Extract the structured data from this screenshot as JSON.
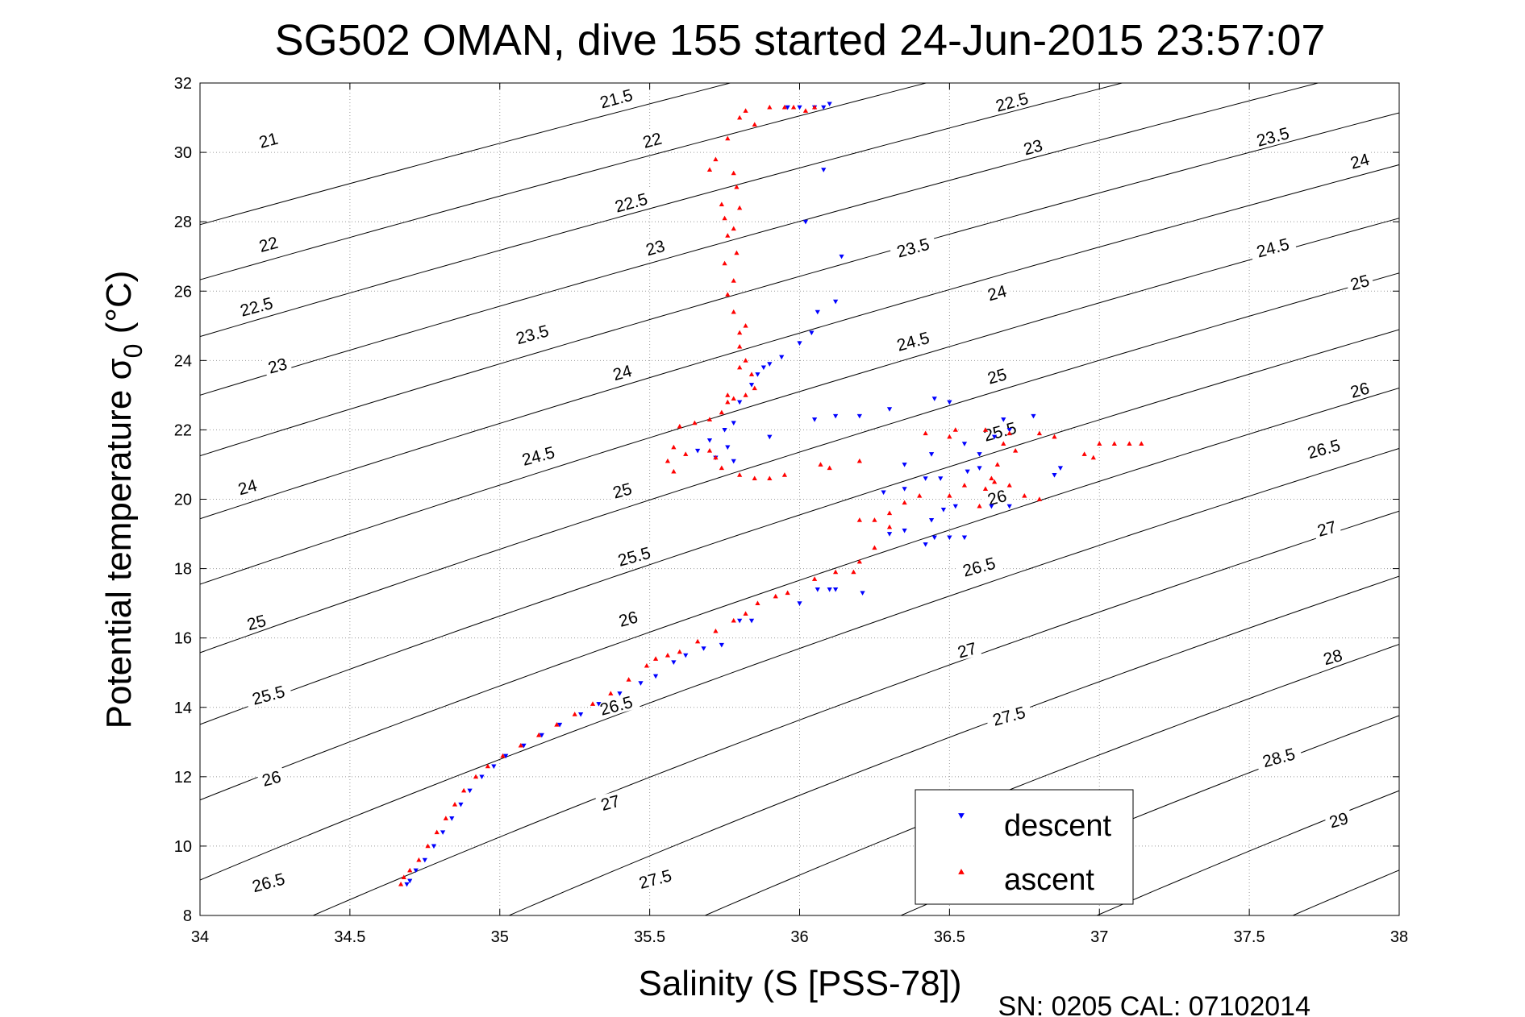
{
  "chart_data": {
    "type": "scatter",
    "title": "SG502 OMAN, dive 155 started 24-Jun-2015 23:57:07",
    "xlabel": "Salinity (S [PSS-78])",
    "ylabel_main": "Potential temperature σ",
    "ylabel_sub": "0",
    "ylabel_unit": " (°C)",
    "footer": "SN: 0205  CAL: 07102014",
    "xlim": [
      34,
      38
    ],
    "ylim": [
      8,
      32
    ],
    "xticks": [
      "34",
      "34.5",
      "35",
      "35.5",
      "36",
      "36.5",
      "37",
      "37.5",
      "38"
    ],
    "yticks": [
      "8",
      "10",
      "12",
      "14",
      "16",
      "18",
      "20",
      "22",
      "24",
      "26",
      "28",
      "30",
      "32"
    ],
    "grid": true,
    "legend_position": "bottom-right",
    "contour_labels": [
      {
        "text": "21",
        "x": 34.23,
        "y": 30.3
      },
      {
        "text": "21.5",
        "x": 35.39,
        "y": 31.5
      },
      {
        "text": "22.5",
        "x": 36.71,
        "y": 31.4
      },
      {
        "text": "22",
        "x": 34.23,
        "y": 27.3
      },
      {
        "text": "22",
        "x": 35.51,
        "y": 30.3
      },
      {
        "text": "23",
        "x": 36.78,
        "y": 30.1
      },
      {
        "text": "23.5",
        "x": 37.58,
        "y": 30.4
      },
      {
        "text": "24",
        "x": 37.87,
        "y": 29.7
      },
      {
        "text": "22.5",
        "x": 34.19,
        "y": 25.5
      },
      {
        "text": "22.5",
        "x": 35.44,
        "y": 28.5
      },
      {
        "text": "23.5",
        "x": 36.38,
        "y": 27.2
      },
      {
        "text": "24.5",
        "x": 37.58,
        "y": 27.2
      },
      {
        "text": "25",
        "x": 37.87,
        "y": 26.2
      },
      {
        "text": "23",
        "x": 34.26,
        "y": 23.8
      },
      {
        "text": "23",
        "x": 35.52,
        "y": 27.2
      },
      {
        "text": "24",
        "x": 36.66,
        "y": 25.9
      },
      {
        "text": "23.5",
        "x": 35.11,
        "y": 24.7
      },
      {
        "text": "24",
        "x": 35.41,
        "y": 23.6
      },
      {
        "text": "24.5",
        "x": 36.38,
        "y": 24.5
      },
      {
        "text": "25",
        "x": 36.66,
        "y": 23.5
      },
      {
        "text": "26",
        "x": 37.87,
        "y": 23.1
      },
      {
        "text": "24",
        "x": 34.16,
        "y": 20.3
      },
      {
        "text": "24.5",
        "x": 35.13,
        "y": 21.2
      },
      {
        "text": "25",
        "x": 35.41,
        "y": 20.2
      },
      {
        "text": "25.5",
        "x": 36.67,
        "y": 21.9
      },
      {
        "text": "26.5",
        "x": 37.75,
        "y": 21.4
      },
      {
        "text": "26",
        "x": 36.66,
        "y": 20.0
      },
      {
        "text": "27",
        "x": 37.76,
        "y": 19.1
      },
      {
        "text": "25.5",
        "x": 35.45,
        "y": 18.3
      },
      {
        "text": "26.5",
        "x": 36.6,
        "y": 18.0
      },
      {
        "text": "25",
        "x": 34.19,
        "y": 16.4
      },
      {
        "text": "26",
        "x": 35.43,
        "y": 16.5
      },
      {
        "text": "27",
        "x": 36.56,
        "y": 15.6
      },
      {
        "text": "28",
        "x": 37.78,
        "y": 15.4
      },
      {
        "text": "25.5",
        "x": 34.23,
        "y": 14.3
      },
      {
        "text": "26.5",
        "x": 35.39,
        "y": 14.0
      },
      {
        "text": "27.5",
        "x": 36.7,
        "y": 13.7
      },
      {
        "text": "28.5",
        "x": 37.6,
        "y": 12.5
      },
      {
        "text": "26",
        "x": 34.24,
        "y": 11.9
      },
      {
        "text": "27",
        "x": 35.37,
        "y": 11.2
      },
      {
        "text": "29",
        "x": 37.8,
        "y": 10.7
      },
      {
        "text": "26.5",
        "x": 34.23,
        "y": 8.9
      },
      {
        "text": "27.5",
        "x": 35.52,
        "y": 9.0
      }
    ],
    "series": [
      {
        "name": "descent",
        "color": "#0000ff",
        "marker": "triangle-down",
        "points": [
          [
            34.69,
            8.9
          ],
          [
            34.7,
            9.0
          ],
          [
            34.72,
            9.3
          ],
          [
            34.75,
            9.6
          ],
          [
            34.78,
            10.0
          ],
          [
            34.81,
            10.4
          ],
          [
            34.84,
            10.8
          ],
          [
            34.87,
            11.2
          ],
          [
            34.9,
            11.6
          ],
          [
            34.94,
            12.0
          ],
          [
            34.98,
            12.3
          ],
          [
            35.02,
            12.6
          ],
          [
            35.08,
            12.9
          ],
          [
            35.14,
            13.2
          ],
          [
            35.2,
            13.5
          ],
          [
            35.27,
            13.8
          ],
          [
            35.33,
            14.1
          ],
          [
            35.4,
            14.4
          ],
          [
            35.47,
            14.7
          ],
          [
            35.52,
            14.9
          ],
          [
            35.58,
            15.3
          ],
          [
            35.62,
            15.5
          ],
          [
            35.68,
            15.7
          ],
          [
            35.74,
            15.8
          ],
          [
            35.8,
            16.5
          ],
          [
            35.84,
            16.5
          ],
          [
            36.0,
            17.0
          ],
          [
            36.06,
            17.4
          ],
          [
            36.1,
            17.4
          ],
          [
            36.12,
            17.4
          ],
          [
            36.21,
            17.3
          ],
          [
            36.3,
            19.0
          ],
          [
            36.35,
            19.1
          ],
          [
            36.42,
            18.7
          ],
          [
            36.45,
            18.9
          ],
          [
            36.5,
            18.9
          ],
          [
            36.55,
            18.9
          ],
          [
            36.44,
            19.4
          ],
          [
            36.48,
            19.7
          ],
          [
            36.52,
            19.8
          ],
          [
            36.28,
            20.2
          ],
          [
            36.35,
            20.3
          ],
          [
            36.42,
            20.6
          ],
          [
            36.47,
            20.6
          ],
          [
            36.35,
            21.0
          ],
          [
            36.44,
            21.3
          ],
          [
            36.55,
            21.6
          ],
          [
            36.6,
            21.3
          ],
          [
            36.65,
            21.8
          ],
          [
            36.7,
            22.0
          ],
          [
            36.78,
            22.4
          ],
          [
            36.68,
            22.3
          ],
          [
            36.5,
            22.8
          ],
          [
            36.45,
            22.9
          ],
          [
            36.3,
            22.6
          ],
          [
            36.12,
            22.4
          ],
          [
            36.2,
            22.4
          ],
          [
            36.05,
            22.3
          ],
          [
            35.9,
            21.8
          ],
          [
            35.76,
            21.5
          ],
          [
            35.7,
            21.7
          ],
          [
            35.66,
            21.4
          ],
          [
            35.72,
            21.2
          ],
          [
            35.78,
            21.1
          ],
          [
            35.75,
            22.0
          ],
          [
            35.78,
            22.2
          ],
          [
            35.8,
            22.8
          ],
          [
            35.84,
            23.3
          ],
          [
            35.86,
            23.6
          ],
          [
            35.88,
            23.8
          ],
          [
            35.9,
            23.9
          ],
          [
            35.94,
            24.1
          ],
          [
            36.0,
            24.5
          ],
          [
            36.04,
            24.8
          ],
          [
            36.06,
            25.4
          ],
          [
            36.12,
            25.7
          ],
          [
            36.14,
            27.0
          ],
          [
            36.02,
            28.0
          ],
          [
            36.08,
            29.5
          ],
          [
            36.08,
            31.3
          ],
          [
            36.05,
            31.3
          ],
          [
            36.1,
            31.4
          ],
          [
            36.0,
            31.3
          ],
          [
            35.96,
            31.3
          ],
          [
            36.64,
            19.8
          ],
          [
            36.7,
            19.8
          ],
          [
            36.85,
            20.7
          ],
          [
            36.87,
            20.9
          ],
          [
            36.56,
            20.8
          ],
          [
            36.6,
            20.9
          ]
        ]
      },
      {
        "name": "ascent",
        "color": "#ff0000",
        "marker": "triangle-up",
        "points": [
          [
            34.67,
            8.9
          ],
          [
            34.68,
            9.1
          ],
          [
            34.7,
            9.3
          ],
          [
            34.73,
            9.6
          ],
          [
            34.76,
            10.0
          ],
          [
            34.79,
            10.4
          ],
          [
            34.82,
            10.8
          ],
          [
            34.85,
            11.2
          ],
          [
            34.88,
            11.6
          ],
          [
            34.92,
            12.0
          ],
          [
            34.96,
            12.3
          ],
          [
            35.01,
            12.6
          ],
          [
            35.07,
            12.9
          ],
          [
            35.13,
            13.2
          ],
          [
            35.19,
            13.5
          ],
          [
            35.25,
            13.8
          ],
          [
            35.31,
            14.1
          ],
          [
            35.37,
            14.4
          ],
          [
            35.43,
            14.8
          ],
          [
            35.49,
            15.2
          ],
          [
            35.52,
            15.4
          ],
          [
            35.56,
            15.5
          ],
          [
            35.6,
            15.6
          ],
          [
            35.66,
            15.9
          ],
          [
            35.72,
            16.2
          ],
          [
            35.78,
            16.5
          ],
          [
            35.82,
            16.7
          ],
          [
            35.86,
            17.0
          ],
          [
            35.92,
            17.2
          ],
          [
            35.96,
            17.3
          ],
          [
            36.05,
            17.7
          ],
          [
            36.12,
            17.9
          ],
          [
            36.18,
            17.9
          ],
          [
            36.2,
            18.2
          ],
          [
            36.25,
            18.6
          ],
          [
            36.3,
            19.2
          ],
          [
            36.2,
            19.4
          ],
          [
            36.25,
            19.4
          ],
          [
            36.3,
            19.6
          ],
          [
            36.35,
            19.9
          ],
          [
            36.4,
            20.1
          ],
          [
            36.5,
            20.1
          ],
          [
            36.55,
            20.4
          ],
          [
            36.62,
            20.3
          ],
          [
            36.65,
            20.5
          ],
          [
            36.7,
            20.4
          ],
          [
            36.75,
            20.1
          ],
          [
            36.8,
            20.0
          ],
          [
            36.6,
            19.8
          ],
          [
            36.64,
            20.6
          ],
          [
            36.66,
            21.0
          ],
          [
            36.72,
            21.4
          ],
          [
            36.68,
            21.6
          ],
          [
            36.7,
            21.9
          ],
          [
            36.8,
            21.9
          ],
          [
            36.85,
            21.8
          ],
          [
            36.95,
            21.3
          ],
          [
            36.98,
            21.2
          ],
          [
            37.0,
            21.6
          ],
          [
            37.05,
            21.6
          ],
          [
            37.1,
            21.6
          ],
          [
            37.14,
            21.6
          ],
          [
            36.62,
            22.0
          ],
          [
            36.52,
            22.0
          ],
          [
            36.5,
            21.8
          ],
          [
            36.42,
            21.9
          ],
          [
            36.2,
            21.1
          ],
          [
            36.1,
            20.9
          ],
          [
            36.07,
            21.0
          ],
          [
            35.95,
            20.7
          ],
          [
            35.9,
            20.6
          ],
          [
            35.85,
            20.6
          ],
          [
            35.8,
            20.7
          ],
          [
            35.74,
            20.9
          ],
          [
            35.72,
            21.2
          ],
          [
            35.7,
            21.4
          ],
          [
            35.62,
            21.3
          ],
          [
            35.58,
            21.5
          ],
          [
            35.56,
            21.1
          ],
          [
            35.58,
            20.8
          ],
          [
            35.6,
            22.1
          ],
          [
            35.65,
            22.2
          ],
          [
            35.7,
            22.3
          ],
          [
            35.74,
            22.5
          ],
          [
            35.76,
            22.8
          ],
          [
            35.78,
            22.9
          ],
          [
            35.82,
            23.0
          ],
          [
            35.85,
            23.2
          ],
          [
            35.84,
            23.6
          ],
          [
            35.82,
            24.0
          ],
          [
            35.8,
            24.4
          ],
          [
            35.8,
            24.8
          ],
          [
            35.78,
            25.4
          ],
          [
            35.76,
            25.9
          ],
          [
            35.78,
            26.3
          ],
          [
            35.75,
            26.8
          ],
          [
            35.79,
            27.1
          ],
          [
            35.76,
            27.6
          ],
          [
            35.75,
            28.1
          ],
          [
            35.8,
            28.4
          ],
          [
            35.79,
            29.0
          ],
          [
            35.78,
            29.4
          ],
          [
            35.72,
            29.8
          ],
          [
            35.76,
            30.4
          ],
          [
            35.8,
            31.0
          ],
          [
            35.85,
            30.8
          ],
          [
            35.82,
            31.2
          ],
          [
            35.9,
            31.3
          ],
          [
            35.95,
            31.3
          ],
          [
            35.98,
            31.3
          ],
          [
            36.02,
            31.2
          ],
          [
            36.05,
            31.3
          ],
          [
            35.7,
            29.5
          ],
          [
            35.74,
            28.5
          ],
          [
            35.78,
            27.8
          ],
          [
            35.82,
            25.0
          ],
          [
            35.8,
            23.8
          ],
          [
            35.76,
            23.0
          ]
        ]
      }
    ]
  }
}
